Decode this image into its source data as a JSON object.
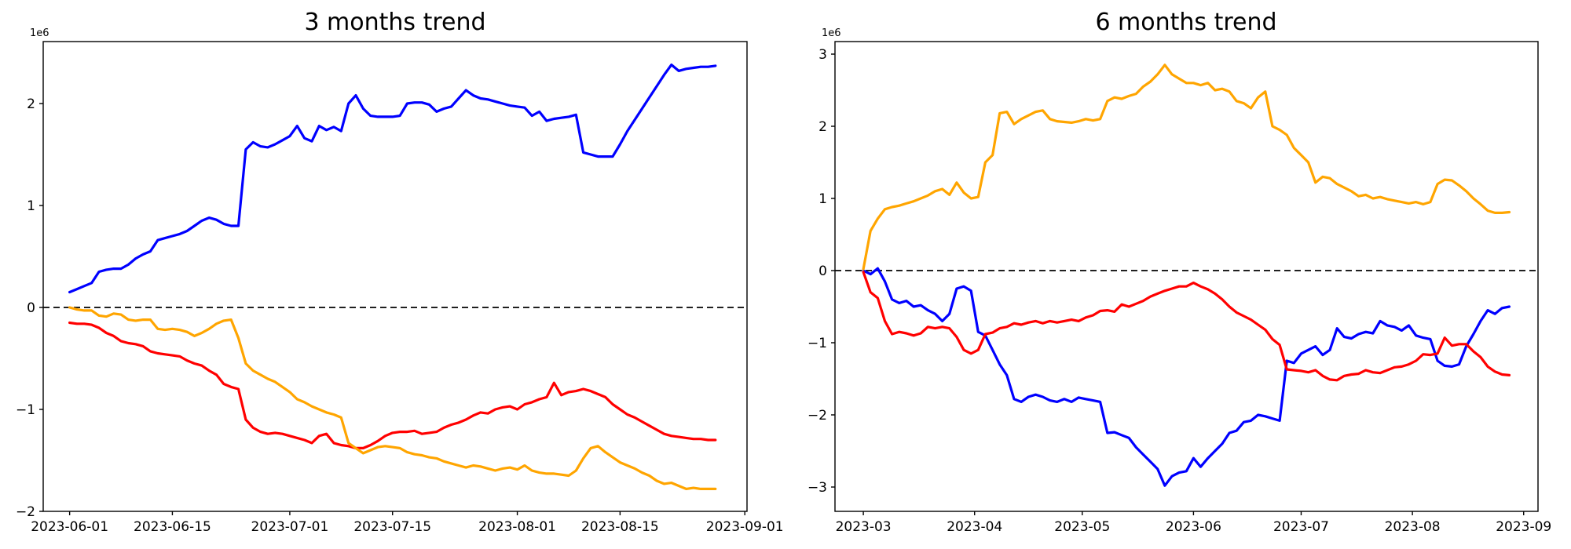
{
  "figure": {
    "background": "#ffffff",
    "axis_color": "#000000",
    "zero_line_color": "#000000"
  },
  "chart_data": [
    {
      "type": "line",
      "title": "3 months trend",
      "offset_label": "1e6",
      "x_start_date": "2023-06-01",
      "step_days": 1,
      "xlim_days": [
        -3.6,
        92.3
      ],
      "ylim": [
        -2.0,
        2.608
      ],
      "y_ticks": [
        -2,
        -1,
        0,
        1,
        2
      ],
      "x_tick_days": [
        0,
        14,
        30,
        44,
        61,
        75,
        92
      ],
      "x_tick_labels": [
        "2023-06-01",
        "2023-06-15",
        "2023-07-01",
        "2023-07-15",
        "2023-08-01",
        "2023-08-15",
        "2023-09-01"
      ],
      "zero_line": true,
      "grid": false,
      "legend": null,
      "series": [
        {
          "name": "blue-series",
          "color": "#0000ff",
          "values": [
            0.15,
            0.18,
            0.21,
            0.24,
            0.35,
            0.37,
            0.38,
            0.38,
            0.42,
            0.48,
            0.52,
            0.55,
            0.66,
            0.68,
            0.7,
            0.72,
            0.75,
            0.8,
            0.85,
            0.88,
            0.86,
            0.82,
            0.8,
            0.8,
            1.55,
            1.62,
            1.58,
            1.57,
            1.6,
            1.64,
            1.68,
            1.78,
            1.66,
            1.63,
            1.78,
            1.74,
            1.77,
            1.73,
            2.0,
            2.08,
            1.95,
            1.88,
            1.87,
            1.87,
            1.87,
            1.88,
            2.0,
            2.01,
            2.01,
            1.99,
            1.92,
            1.95,
            1.97,
            2.05,
            2.13,
            2.08,
            2.05,
            2.04,
            2.02,
            2.0,
            1.98,
            1.97,
            1.96,
            1.88,
            1.92,
            1.83,
            1.85,
            1.86,
            1.87,
            1.89,
            1.52,
            1.5,
            1.48,
            1.48,
            1.48,
            1.6,
            1.73,
            1.84,
            1.95,
            2.06,
            2.17,
            2.28,
            2.38,
            2.32,
            2.34,
            2.35,
            2.36,
            2.36,
            2.37
          ]
        },
        {
          "name": "red-series",
          "color": "#ff0000",
          "values": [
            -0.15,
            -0.16,
            -0.16,
            -0.17,
            -0.2,
            -0.25,
            -0.28,
            -0.33,
            -0.35,
            -0.36,
            -0.38,
            -0.43,
            -0.45,
            -0.46,
            -0.47,
            -0.48,
            -0.52,
            -0.55,
            -0.57,
            -0.62,
            -0.66,
            -0.75,
            -0.78,
            -0.8,
            -1.1,
            -1.18,
            -1.22,
            -1.24,
            -1.23,
            -1.24,
            -1.26,
            -1.28,
            -1.3,
            -1.33,
            -1.26,
            -1.24,
            -1.33,
            -1.35,
            -1.36,
            -1.38,
            -1.38,
            -1.35,
            -1.31,
            -1.26,
            -1.23,
            -1.22,
            -1.22,
            -1.21,
            -1.24,
            -1.23,
            -1.22,
            -1.18,
            -1.15,
            -1.13,
            -1.1,
            -1.06,
            -1.03,
            -1.04,
            -1.0,
            -0.98,
            -0.97,
            -1.0,
            -0.95,
            -0.93,
            -0.9,
            -0.88,
            -0.74,
            -0.86,
            -0.83,
            -0.82,
            -0.8,
            -0.82,
            -0.85,
            -0.88,
            -0.95,
            -1.0,
            -1.05,
            -1.08,
            -1.12,
            -1.16,
            -1.2,
            -1.24,
            -1.26,
            -1.27,
            -1.28,
            -1.29,
            -1.29,
            -1.3,
            -1.3
          ]
        },
        {
          "name": "orange-series",
          "color": "#ffa500",
          "values": [
            0.0,
            -0.02,
            -0.03,
            -0.03,
            -0.08,
            -0.09,
            -0.06,
            -0.07,
            -0.12,
            -0.13,
            -0.12,
            -0.12,
            -0.21,
            -0.22,
            -0.21,
            -0.22,
            -0.24,
            -0.28,
            -0.25,
            -0.21,
            -0.16,
            -0.13,
            -0.12,
            -0.3,
            -0.55,
            -0.62,
            -0.66,
            -0.7,
            -0.73,
            -0.78,
            -0.83,
            -0.9,
            -0.93,
            -0.97,
            -1.0,
            -1.03,
            -1.05,
            -1.08,
            -1.33,
            -1.38,
            -1.43,
            -1.4,
            -1.37,
            -1.36,
            -1.37,
            -1.38,
            -1.42,
            -1.44,
            -1.45,
            -1.47,
            -1.48,
            -1.51,
            -1.53,
            -1.55,
            -1.57,
            -1.55,
            -1.56,
            -1.58,
            -1.6,
            -1.58,
            -1.57,
            -1.59,
            -1.55,
            -1.6,
            -1.62,
            -1.63,
            -1.63,
            -1.64,
            -1.65,
            -1.6,
            -1.48,
            -1.38,
            -1.36,
            -1.42,
            -1.47,
            -1.52,
            -1.55,
            -1.58,
            -1.62,
            -1.65,
            -1.7,
            -1.73,
            -1.72,
            -1.75,
            -1.78,
            -1.77,
            -1.78,
            -1.78,
            -1.78
          ]
        }
      ]
    },
    {
      "type": "line",
      "title": "6 months trend",
      "offset_label": "1e6",
      "x_start_date": "2023-03-01",
      "step_days": 2,
      "xlim_days": [
        -7.9,
        188.0
      ],
      "ylim": [
        -3.337,
        3.174
      ],
      "y_ticks": [
        -3,
        -2,
        -1,
        0,
        1,
        2,
        3
      ],
      "x_tick_days": [
        0,
        31,
        61,
        92,
        122,
        153,
        184
      ],
      "x_tick_labels": [
        "2023-03",
        "2023-04",
        "2023-05",
        "2023-06",
        "2023-07",
        "2023-08",
        "2023-09"
      ],
      "zero_line": true,
      "grid": false,
      "legend": null,
      "series": [
        {
          "name": "blue-series",
          "color": "#0000ff",
          "values": [
            0.0,
            -0.05,
            0.03,
            -0.15,
            -0.4,
            -0.45,
            -0.42,
            -0.5,
            -0.48,
            -0.55,
            -0.6,
            -0.7,
            -0.6,
            -0.25,
            -0.22,
            -0.28,
            -0.85,
            -0.9,
            -1.1,
            -1.3,
            -1.45,
            -1.78,
            -1.82,
            -1.75,
            -1.72,
            -1.75,
            -1.8,
            -1.82,
            -1.78,
            -1.82,
            -1.76,
            -1.78,
            -1.8,
            -1.82,
            -2.25,
            -2.24,
            -2.28,
            -2.32,
            -2.45,
            -2.55,
            -2.65,
            -2.75,
            -2.98,
            -2.85,
            -2.8,
            -2.78,
            -2.6,
            -2.72,
            -2.6,
            -2.5,
            -2.4,
            -2.25,
            -2.22,
            -2.1,
            -2.08,
            -2.0,
            -2.02,
            -2.05,
            -2.08,
            -1.25,
            -1.28,
            -1.15,
            -1.1,
            -1.05,
            -1.17,
            -1.1,
            -0.8,
            -0.92,
            -0.94,
            -0.88,
            -0.85,
            -0.87,
            -0.7,
            -0.76,
            -0.78,
            -0.83,
            -0.76,
            -0.9,
            -0.93,
            -0.95,
            -1.25,
            -1.32,
            -1.33,
            -1.3,
            -1.05,
            -0.88,
            -0.7,
            -0.55,
            -0.6,
            -0.52,
            -0.5
          ]
        },
        {
          "name": "red-series",
          "color": "#ff0000",
          "values": [
            -0.02,
            -0.3,
            -0.38,
            -0.7,
            -0.88,
            -0.85,
            -0.87,
            -0.9,
            -0.87,
            -0.78,
            -0.8,
            -0.78,
            -0.8,
            -0.92,
            -1.1,
            -1.15,
            -1.1,
            -0.88,
            -0.86,
            -0.8,
            -0.78,
            -0.73,
            -0.75,
            -0.72,
            -0.7,
            -0.73,
            -0.7,
            -0.72,
            -0.7,
            -0.68,
            -0.7,
            -0.65,
            -0.62,
            -0.56,
            -0.55,
            -0.57,
            -0.47,
            -0.5,
            -0.46,
            -0.42,
            -0.36,
            -0.32,
            -0.28,
            -0.25,
            -0.22,
            -0.22,
            -0.17,
            -0.22,
            -0.26,
            -0.32,
            -0.4,
            -0.5,
            -0.58,
            -0.63,
            -0.68,
            -0.75,
            -0.82,
            -0.95,
            -1.03,
            -1.37,
            -1.38,
            -1.39,
            -1.41,
            -1.38,
            -1.46,
            -1.51,
            -1.52,
            -1.46,
            -1.44,
            -1.43,
            -1.38,
            -1.41,
            -1.42,
            -1.38,
            -1.34,
            -1.33,
            -1.3,
            -1.25,
            -1.16,
            -1.17,
            -1.15,
            -0.93,
            -1.04,
            -1.02,
            -1.02,
            -1.12,
            -1.2,
            -1.33,
            -1.4,
            -1.44,
            -1.45
          ]
        },
        {
          "name": "orange-series",
          "color": "#ffa500",
          "values": [
            0.02,
            0.55,
            0.72,
            0.85,
            0.88,
            0.9,
            0.93,
            0.96,
            1.0,
            1.04,
            1.1,
            1.13,
            1.05,
            1.22,
            1.08,
            1.0,
            1.02,
            1.5,
            1.6,
            2.18,
            2.2,
            2.03,
            2.1,
            2.15,
            2.2,
            2.22,
            2.1,
            2.07,
            2.06,
            2.05,
            2.07,
            2.1,
            2.08,
            2.1,
            2.35,
            2.4,
            2.38,
            2.42,
            2.45,
            2.55,
            2.62,
            2.72,
            2.85,
            2.72,
            2.66,
            2.6,
            2.6,
            2.57,
            2.6,
            2.5,
            2.52,
            2.48,
            2.35,
            2.32,
            2.25,
            2.4,
            2.48,
            2.0,
            1.95,
            1.88,
            1.7,
            1.6,
            1.5,
            1.22,
            1.3,
            1.28,
            1.2,
            1.15,
            1.1,
            1.03,
            1.05,
            1.0,
            1.02,
            0.99,
            0.97,
            0.95,
            0.93,
            0.95,
            0.92,
            0.95,
            1.2,
            1.26,
            1.25,
            1.18,
            1.1,
            1.0,
            0.92,
            0.83,
            0.8,
            0.8,
            0.81
          ]
        }
      ]
    }
  ]
}
